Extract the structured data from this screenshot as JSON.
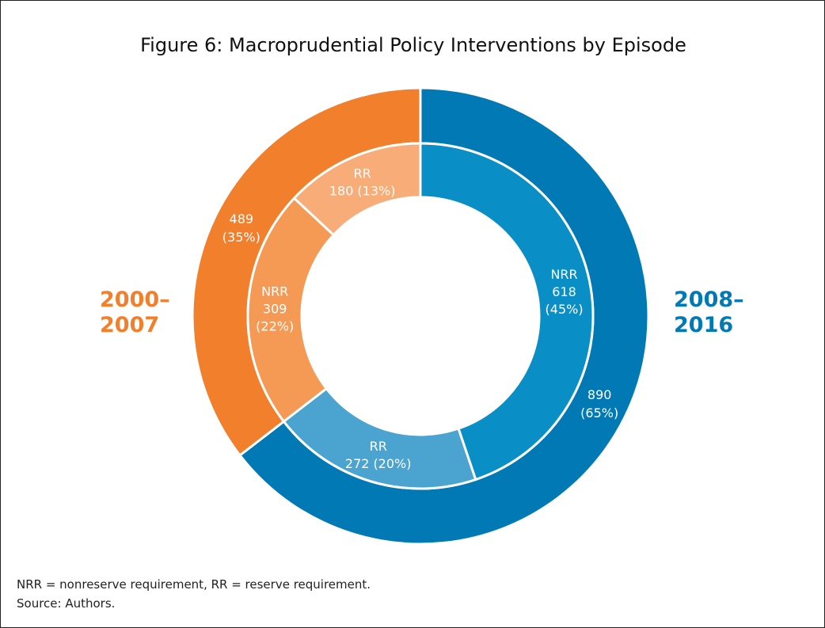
{
  "chart_data": {
    "type": "donut",
    "title": "Figure 6: Macroprudential Policy Interventions by Episode",
    "outer": {
      "categories": [
        "2008–2016",
        "2000–2007"
      ],
      "values": [
        890,
        489
      ],
      "percents": [
        65,
        35
      ],
      "percent_labels": [
        "(65%)",
        "(35%)"
      ],
      "colors": [
        "#0079b5",
        "#f27f2c"
      ]
    },
    "inner": {
      "categories": [
        "NRR",
        "RR",
        "NRR",
        "RR"
      ],
      "values": [
        618,
        272,
        309,
        180
      ],
      "percents": [
        45,
        20,
        22,
        13
      ],
      "percent_labels": [
        "(45%)",
        "(20%)",
        "(22%)",
        "(13%)"
      ],
      "colors": [
        "#0a8ec6",
        "#4ba3d0",
        "#f59a55",
        "#f8ad78"
      ]
    },
    "notes": [
      "NRR = nonreserve requirement, RR = reserve requirement.",
      "Source: Authors."
    ]
  }
}
